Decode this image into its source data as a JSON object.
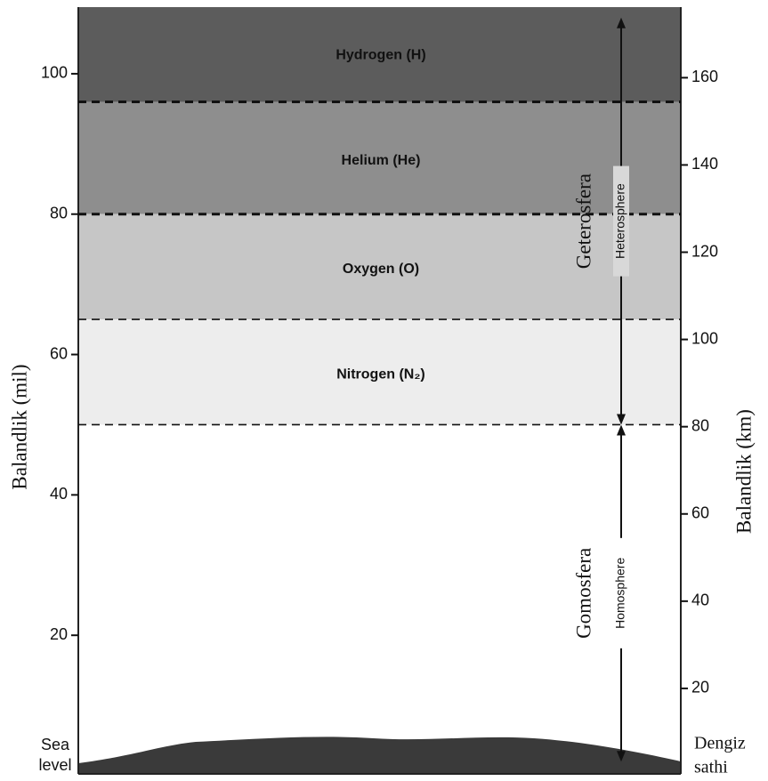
{
  "chart_data": {
    "type": "layers",
    "ylabel": "Balandlik (mil)",
    "y2label": "Balandlik (km)",
    "ylim": [
      0,
      110
    ],
    "yticks": [
      20,
      40,
      60,
      80,
      100
    ],
    "y2lim": [
      0,
      177
    ],
    "y2ticks": [
      20,
      40,
      60,
      80,
      100,
      120,
      140,
      160
    ],
    "layers": [
      {
        "name": "Hydrogen (H)",
        "top": 110,
        "bottom": 96,
        "color": "#5c5c5c"
      },
      {
        "name": "Helium (He)",
        "top": 96,
        "bottom": 80,
        "color": "#8e8e8e"
      },
      {
        "name": "Oxygen (O)",
        "top": 80,
        "bottom": 65,
        "color": "#c6c6c6"
      },
      {
        "name": "Nitrogen (N₂)",
        "top": 65,
        "bottom": 50,
        "color": "#ededed"
      }
    ],
    "spheres": [
      {
        "name": "Geterosfera",
        "alt_name": "Heterosphere",
        "top": 108,
        "bottom": 50
      },
      {
        "name": "Gomosfera",
        "alt_name": "Homosphere",
        "top": 50,
        "bottom": 2
      }
    ],
    "sea_level_label": [
      "Sea",
      "level"
    ],
    "sea_level_label_uz": [
      "Dengiz",
      "sathi"
    ]
  }
}
